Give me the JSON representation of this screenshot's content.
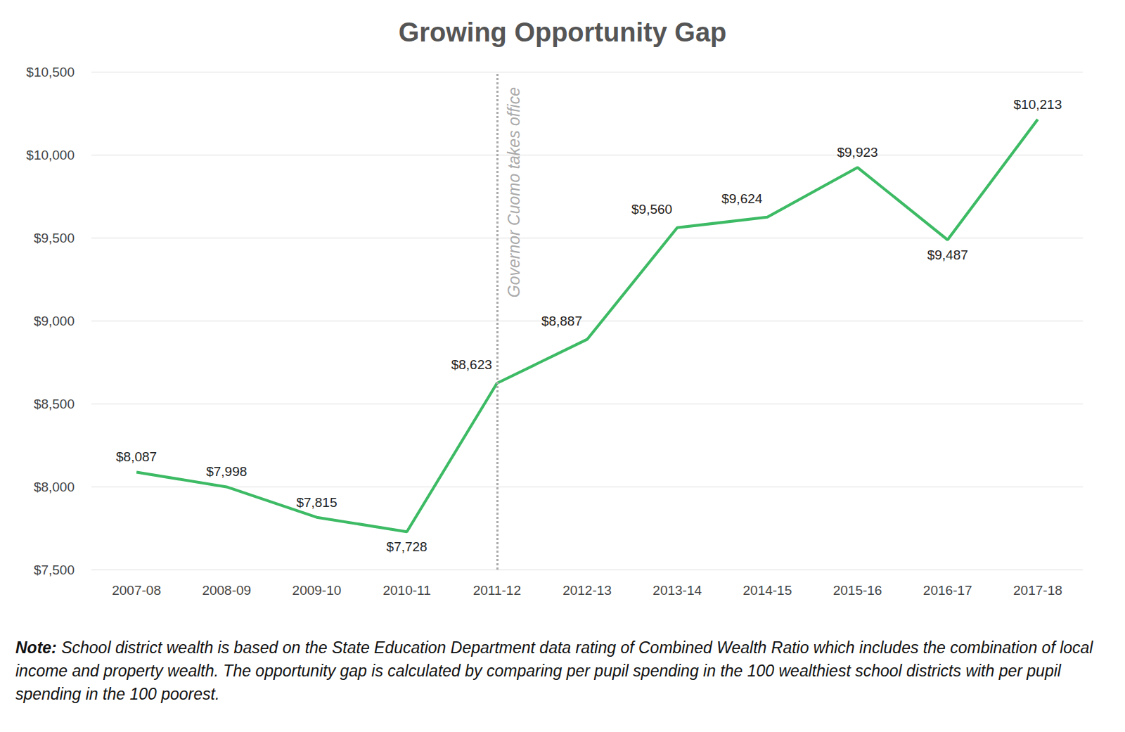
{
  "chart_data": {
    "type": "line",
    "title": "Growing Opportunity Gap",
    "categories": [
      "2007-08",
      "2008-09",
      "2009-10",
      "2010-11",
      "2011-12",
      "2012-13",
      "2013-14",
      "2014-15",
      "2015-16",
      "2016-17",
      "2017-18"
    ],
    "values": [
      8087,
      7998,
      7815,
      7728,
      8623,
      8887,
      9560,
      9624,
      9923,
      9487,
      10213
    ],
    "value_labels": [
      "$8,087",
      "$7,998",
      "$7,815",
      "$7,728",
      "$8,623",
      "$8,887",
      "$9,560",
      "$9,624",
      "$9,923",
      "$9,487",
      "$10,213"
    ],
    "color": "#3dba64",
    "ylim": [
      7500,
      10500
    ],
    "yticks": [
      {
        "value": 7500,
        "label": "$7,500"
      },
      {
        "value": 8000,
        "label": "$8,000"
      },
      {
        "value": 8500,
        "label": "$8,500"
      },
      {
        "value": 9000,
        "label": "$9,000"
      },
      {
        "value": 9500,
        "label": "$9,500"
      },
      {
        "value": 10000,
        "label": "$10,000"
      },
      {
        "value": 10500,
        "label": "$10,500"
      }
    ],
    "grid": true,
    "data_labels": true,
    "annotations": [
      {
        "x": "2011-12",
        "text": "Governor Cuomo takes office"
      }
    ],
    "note": {
      "label": "Note:",
      "text": "School district wealth is based on the State Education Department data rating of Combined Wealth Ratio which includes the combination of local income and property wealth. The opportunity gap is calculated by comparing per pupil spending in the 100 wealthiest school districts with per pupil spending in the 100 poorest."
    }
  }
}
